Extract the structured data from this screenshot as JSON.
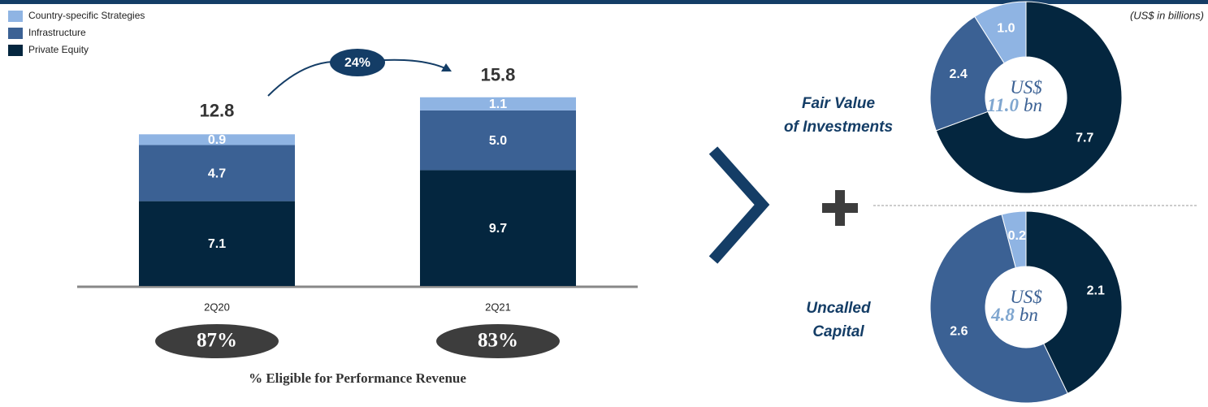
{
  "unit_note": "(US$ in billions)",
  "chart_data": [
    {
      "type": "bar",
      "stacked": true,
      "categories": [
        "2Q20",
        "2Q21"
      ],
      "series": [
        {
          "name": "Private Equity",
          "color": "#04263f",
          "values": [
            7.1,
            9.7
          ]
        },
        {
          "name": "Infrastructure",
          "color": "#3b6194",
          "values": [
            4.7,
            5.0
          ],
          "value_labels": [
            "4.7",
            "5.0"
          ]
        },
        {
          "name": "Country-specific Strategies",
          "color": "#8fb4e3",
          "values": [
            0.9,
            1.1
          ]
        }
      ],
      "totals": [
        12.8,
        15.8
      ],
      "growth": 24,
      "growth_label": "24%",
      "eligible": [
        87,
        83
      ],
      "eligible_labels": [
        "87%",
        "83%"
      ],
      "eligible_title": "% Eligible for Performance Revenue"
    },
    {
      "type": "pie",
      "donut": true,
      "title": "Fair Value of Investments",
      "values": [
        7.7,
        2.4,
        1.0
      ],
      "value_labels": [
        "7.7",
        "2.4",
        "1.0"
      ],
      "colors": [
        "#04263f",
        "#3b6194",
        "#8fb4e3"
      ],
      "center_prefix": "US$",
      "total": 11.0,
      "total_label": "11.0",
      "center_unit": "bn"
    },
    {
      "type": "pie",
      "donut": true,
      "title": "Uncalled Capital",
      "values": [
        2.1,
        2.6,
        0.2
      ],
      "colors": [
        "#04263f",
        "#3b6194",
        "#8fb4e3"
      ],
      "center_prefix": "US$",
      "total": 4.8,
      "center_unit": "bn"
    }
  ]
}
